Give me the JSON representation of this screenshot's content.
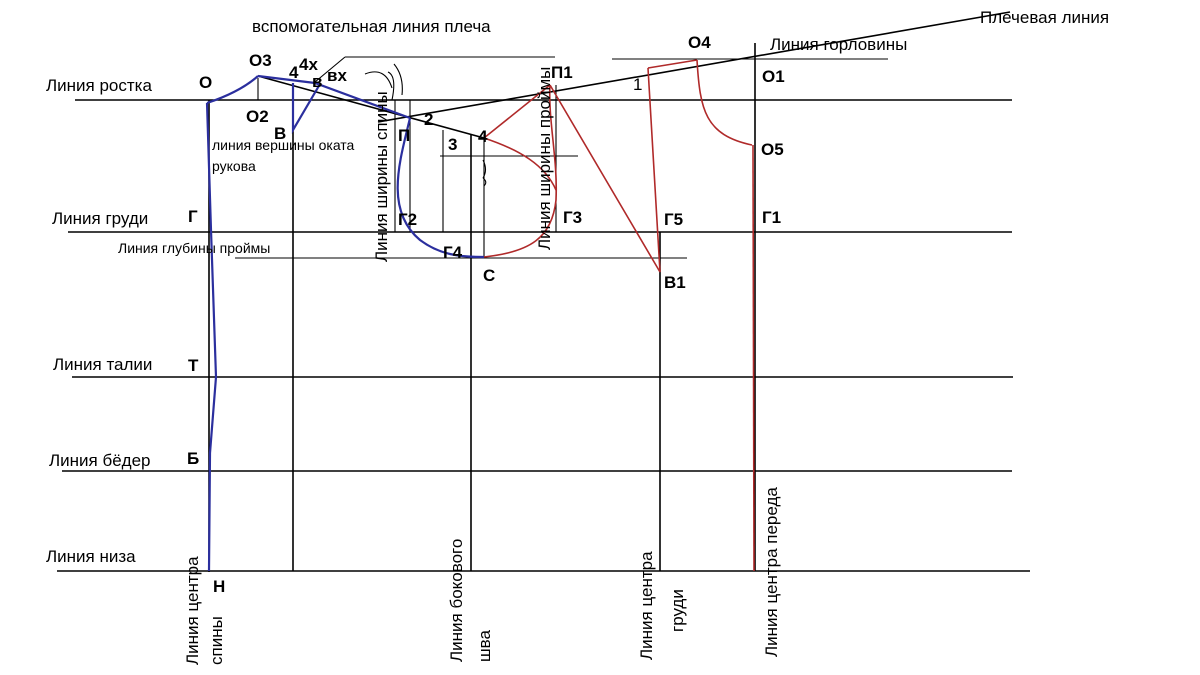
{
  "colors": {
    "line": "#000000",
    "back_contour": "#2b2f9e",
    "front_contour": "#b02a2a"
  },
  "horizontal_lines": {
    "rostok": "Линия ростка",
    "grudi": "Линия груди",
    "talii": "Линия талии",
    "beder": "Линия бёдер",
    "niza": "Линия низа"
  },
  "titles": {
    "aux_shoulder": "вспомогательная линия плеча",
    "shoulder": "Плечевая линия",
    "neckline": "Линия горловины",
    "armhole_depth": "Линия глубины проймы",
    "sleeve_cap_line_1": "линия вершины оката",
    "sleeve_cap_line_2": "рукова"
  },
  "vertical_lines": {
    "back_center_1": "Линия центра",
    "back_center_2": "спины",
    "side_seam_1": "Линия бокового",
    "side_seam_2": "шва",
    "bust_center_1": "Линия центра",
    "bust_center_2": "груди",
    "front_center": "Линия центра переда",
    "back_width": "Линия ширины спины",
    "armhole_width": "Линия ширины проймы"
  },
  "points": {
    "O": "О",
    "O3": "О3",
    "O2": "О2",
    "B": "В",
    "n4": "4",
    "n4x": "4х",
    "v": "в",
    "vx": "вх",
    "P": "П",
    "n2": "2",
    "n3": "3",
    "n4b": "4",
    "G": "Г",
    "G2": "Г2",
    "G4": "Г4",
    "S": "С",
    "T": "Т",
    "Bd": "Б",
    "N": "Н",
    "P1": "П1",
    "G3": "Г3",
    "O4": "О4",
    "n1": "1",
    "O1": "О1",
    "O5": "О5",
    "G5": "Г5",
    "G1": "Г1",
    "V1": "В1"
  }
}
